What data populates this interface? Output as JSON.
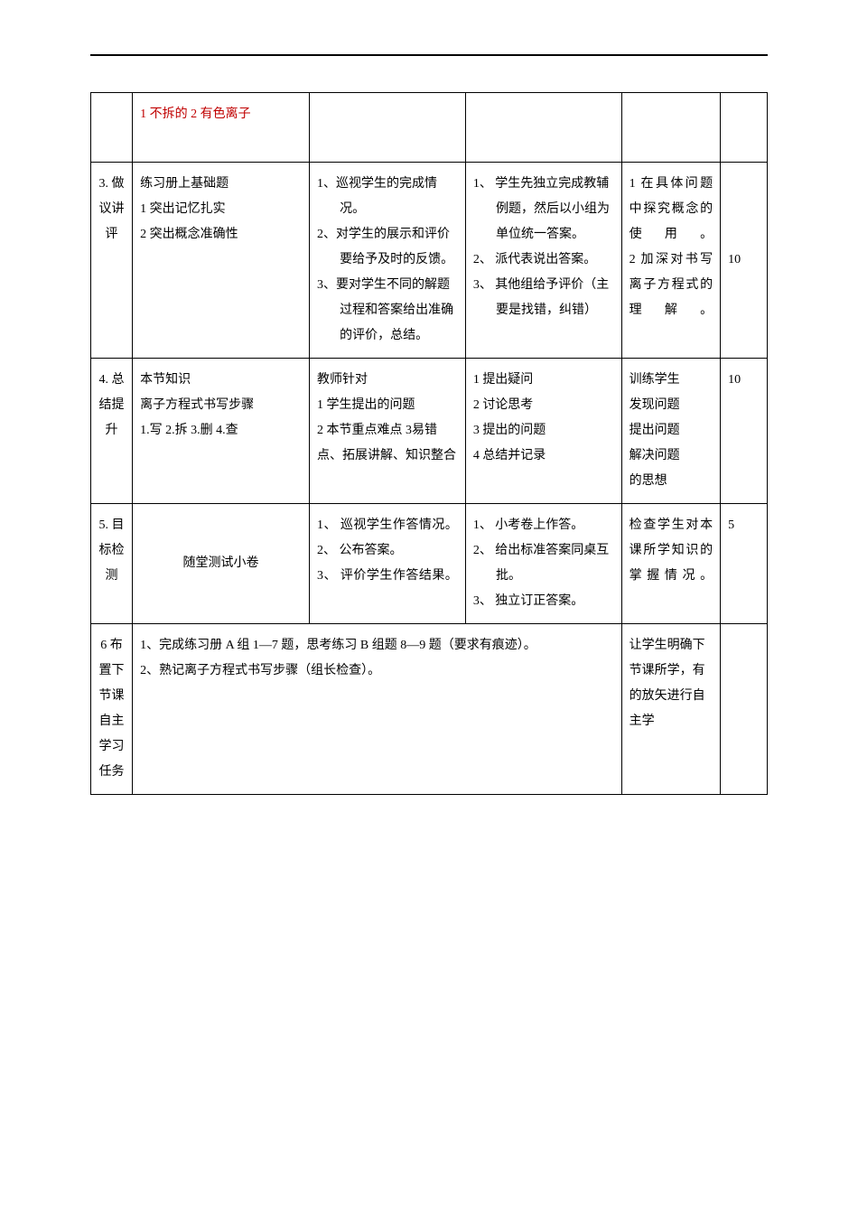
{
  "rows": [
    {
      "c0": "",
      "c1_red": "1 不拆的 2 有色离子",
      "c2": "",
      "c3": "",
      "c4": "",
      "c5": ""
    },
    {
      "c0": "3. 做议讲评",
      "c1_lines": [
        "练习册上基础题",
        "1 突出记忆扎实",
        "2 突出概念准确性"
      ],
      "c2_lines": [
        "1、巡视学生的完成情况。",
        "2、对学生的展示和评价要给予及时的反馈。",
        "3、要对学生不同的解题过程和答案给出准确的评价，总结。"
      ],
      "c3_lines": [
        "1、 学生先独立完成教辅例题，然后以小组为单位统一答案。",
        "2、 派代表说出答案。",
        "3、 其他组给予评价（主要是找错，纠错）"
      ],
      "c4_lines": [
        "1 在具体问题中探究概念的使用。",
        "2 加深对书写离子方程式的理解。"
      ],
      "c5": "10"
    },
    {
      "c0": "4. 总结提升",
      "c1_lines": [
        "本节知识",
        "离子方程式书写步骤",
        "1.写 2.拆 3.删 4.查"
      ],
      "c2_lines": [
        "教师针对",
        "1 学生提出的问题",
        "2 本节重点难点 3易错点、拓展讲解、知识整合"
      ],
      "c3_lines": [
        "",
        "1 提出疑问",
        "2 讨论思考",
        "3 提出的问题",
        "4 总结并记录"
      ],
      "c4_lines": [
        "训练学生",
        "发现问题",
        "提出问题",
        "解决问题",
        "的思想"
      ],
      "c5": "10"
    },
    {
      "c0": "5. 目标检测",
      "c1_center": "随堂测试小卷",
      "c2_lines": [
        "1、 巡视学生作答情况。",
        "2、 公布答案。",
        "3、 评价学生作答结果。"
      ],
      "c3_lines": [
        "1、 小考卷上作答。",
        "2、 给出标准答案同桌互批。",
        "3、 独立订正答案。"
      ],
      "c4_lines": [
        "检查学生对本课所学知识的掌握情况。"
      ],
      "c5": "5"
    },
    {
      "c0": "6 布置下节课自主学习任务",
      "c1_merged_lines": [
        "1、完成练习册 A 组 1—7 题，思考练习 B 组题 8—9 题（要求有痕迹）。",
        "2、熟记离子方程式书写步骤（组长检查）。"
      ],
      "c4_lines": [
        "让学生明确下节课所学，有的放矢进行自主学"
      ],
      "c5": ""
    }
  ]
}
